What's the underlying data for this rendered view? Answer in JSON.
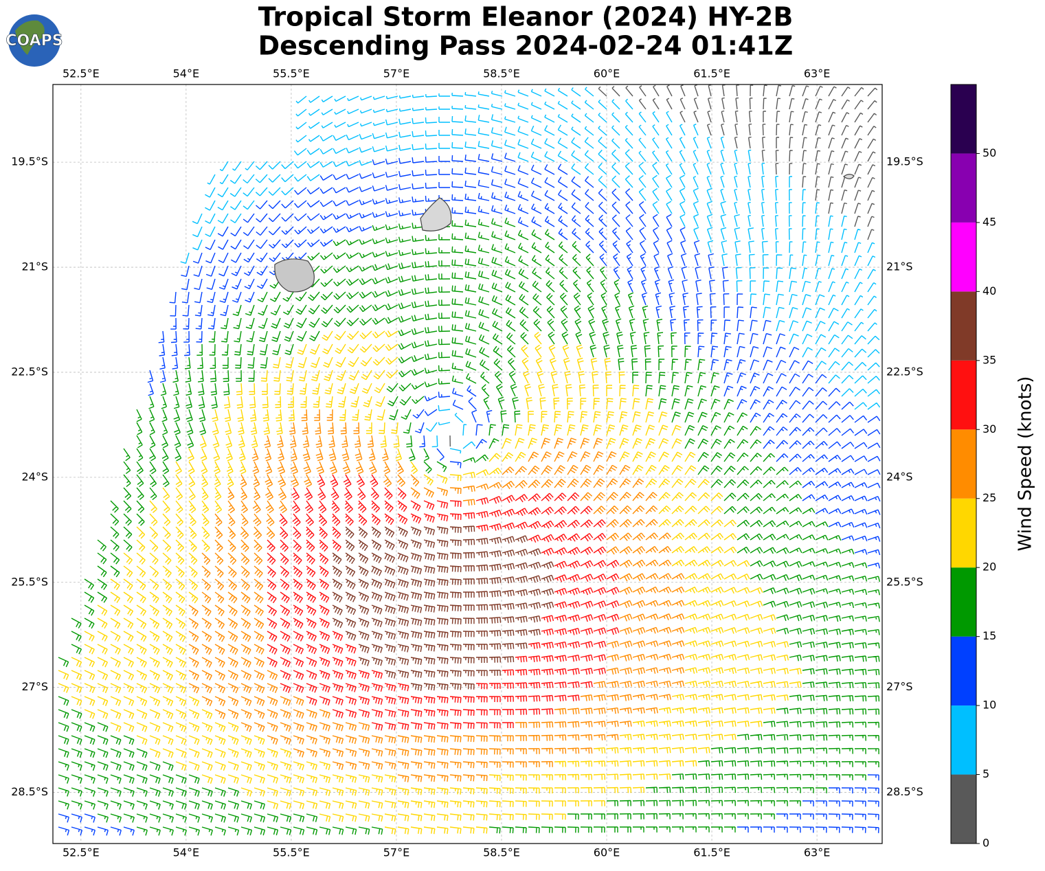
{
  "logo": "COAPS",
  "chart_data": {
    "type": "wind-barb-map",
    "title": "Tropical Storm Eleanor (2024) HY-2B",
    "subtitle": "Descending Pass 2024-02-24 01:41Z",
    "xlim": [
      52.1,
      63.93
    ],
    "ylim": [
      -29.23,
      -18.39
    ],
    "xticks": [
      {
        "value": 52.5,
        "label": "52.5°E"
      },
      {
        "value": 54,
        "label": "54°E"
      },
      {
        "value": 55.5,
        "label": "55.5°E"
      },
      {
        "value": 57,
        "label": "57°E"
      },
      {
        "value": 58.5,
        "label": "58.5°E"
      },
      {
        "value": 60,
        "label": "60°E"
      },
      {
        "value": 61.5,
        "label": "61.5°E"
      },
      {
        "value": 63,
        "label": "63°E"
      }
    ],
    "yticks": [
      {
        "value": -19.5,
        "label": "19.5°S"
      },
      {
        "value": -21,
        "label": "21°S"
      },
      {
        "value": -22.5,
        "label": "22.5°S"
      },
      {
        "value": -24,
        "label": "24°S"
      },
      {
        "value": -25.5,
        "label": "25.5°S"
      },
      {
        "value": -27,
        "label": "27°S"
      },
      {
        "value": -28.5,
        "label": "28.5°S"
      }
    ],
    "grid": true,
    "colorbar": {
      "label": "Wind Speed (knots)",
      "lim": [
        0,
        55
      ],
      "bounds": [
        0,
        5,
        10,
        15,
        20,
        25,
        30,
        35,
        40,
        45,
        50,
        55
      ],
      "colors": [
        "#595959",
        "#00bfff",
        "#0040ff",
        "#009900",
        "#ffd700",
        "#ff8c00",
        "#ff1010",
        "#803a28",
        "#ff00ff",
        "#8800b0",
        "#2a0050"
      ],
      "ticks": [
        0,
        5,
        10,
        15,
        20,
        25,
        30,
        35,
        40,
        45,
        50
      ]
    }
  }
}
